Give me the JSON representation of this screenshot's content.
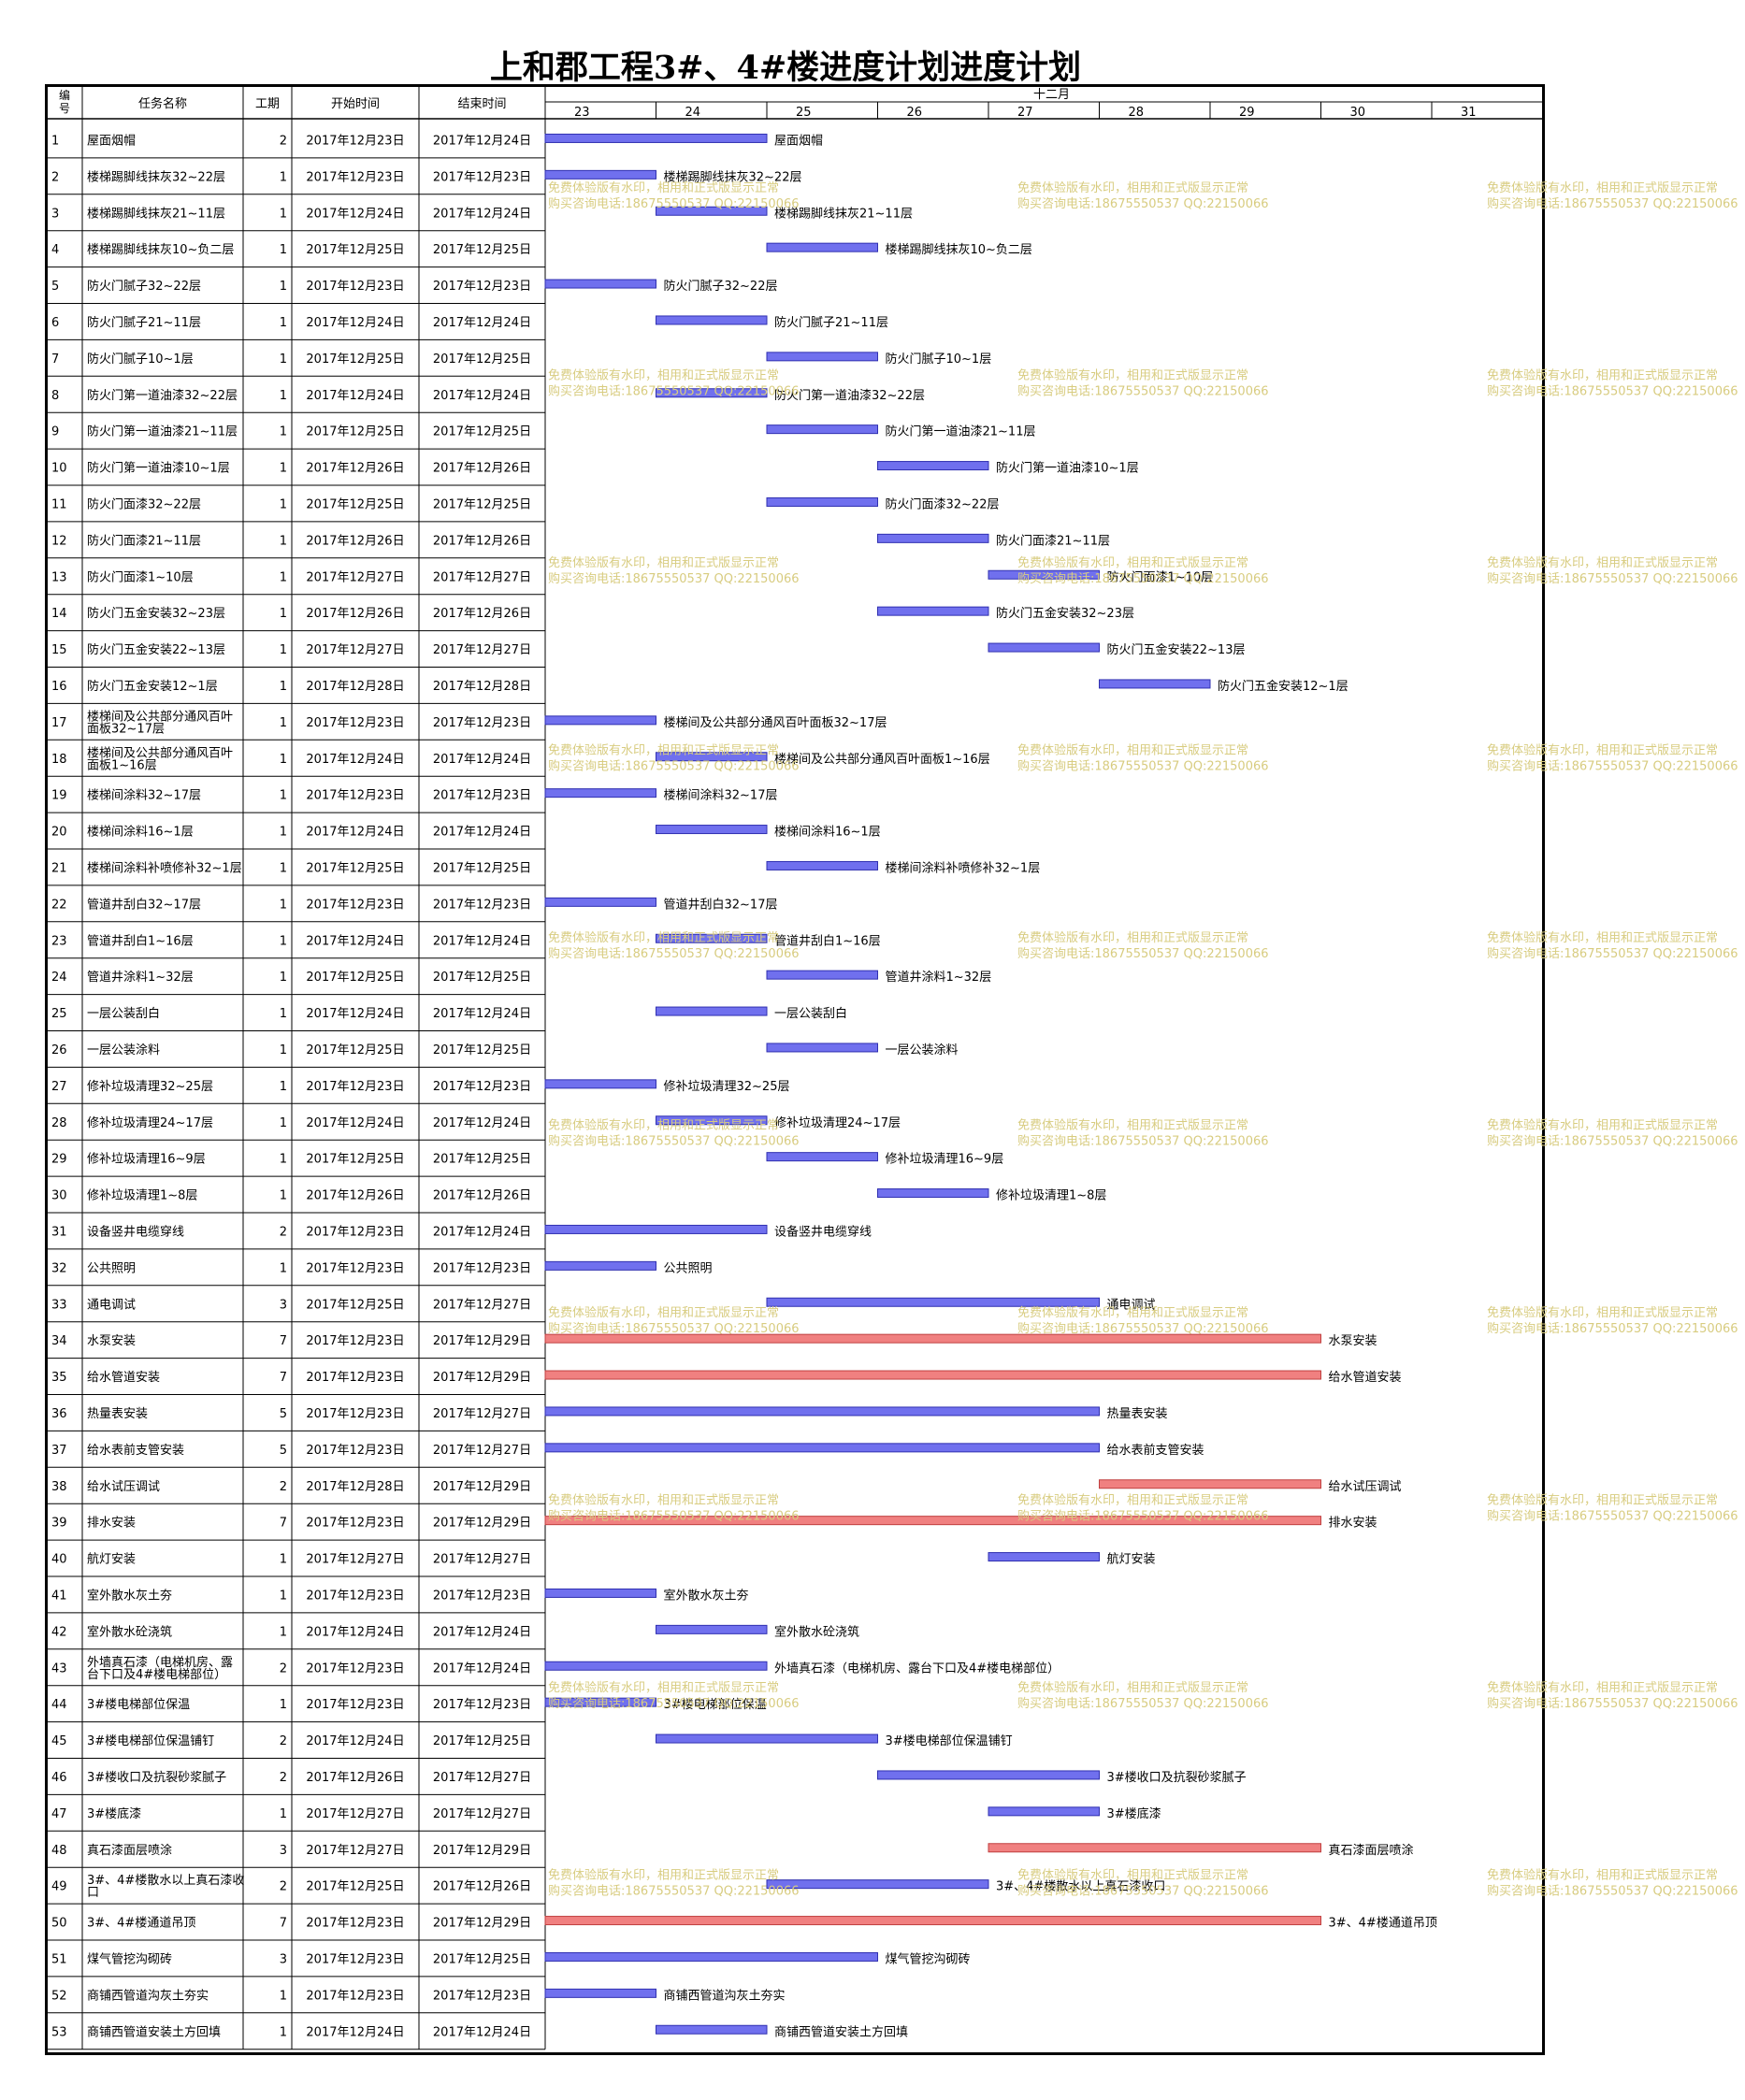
{
  "title": "上和郡工程3#、4#楼进度计划进度计划",
  "columns": {
    "id": "编号",
    "name": "任务名称",
    "dur": "工期",
    "start": "开始时间",
    "end": "结束时间"
  },
  "month_label": "十二月",
  "watermark": {
    "line1": "免费体验版有水印，相用和正式版显示正常",
    "line2": "购买咨询电话:18675550537 QQ:22150066"
  },
  "colors": {
    "normal_bar": "#7070ee",
    "critical_bar": "#f08080",
    "grid": "#888888"
  },
  "chart_data": {
    "type": "gantt",
    "x_axis_days": [
      "23",
      "24",
      "25",
      "26",
      "27",
      "28",
      "29",
      "30",
      "31"
    ],
    "tasks": [
      {
        "id": "1",
        "name": "屋面烟帽",
        "dur": "2",
        "start": "2017年12月23日",
        "end": "2017年12月24日",
        "s": 23,
        "e": 24,
        "critical": false
      },
      {
        "id": "2",
        "name": "楼梯踢脚线抹灰32~22层",
        "dur": "1",
        "start": "2017年12月23日",
        "end": "2017年12月23日",
        "s": 23,
        "e": 23,
        "critical": false
      },
      {
        "id": "3",
        "name": "楼梯踢脚线抹灰21~11层",
        "dur": "1",
        "start": "2017年12月24日",
        "end": "2017年12月24日",
        "s": 24,
        "e": 24,
        "critical": false
      },
      {
        "id": "4",
        "name": "楼梯踢脚线抹灰10~负二层",
        "dur": "1",
        "start": "2017年12月25日",
        "end": "2017年12月25日",
        "s": 25,
        "e": 25,
        "critical": false
      },
      {
        "id": "5",
        "name": "防火门腻子32~22层",
        "dur": "1",
        "start": "2017年12月23日",
        "end": "2017年12月23日",
        "s": 23,
        "e": 23,
        "critical": false
      },
      {
        "id": "6",
        "name": "防火门腻子21~11层",
        "dur": "1",
        "start": "2017年12月24日",
        "end": "2017年12月24日",
        "s": 24,
        "e": 24,
        "critical": false
      },
      {
        "id": "7",
        "name": "防火门腻子10~1层",
        "dur": "1",
        "start": "2017年12月25日",
        "end": "2017年12月25日",
        "s": 25,
        "e": 25,
        "critical": false
      },
      {
        "id": "8",
        "name": "防火门第一道油漆32~22层",
        "dur": "1",
        "start": "2017年12月24日",
        "end": "2017年12月24日",
        "s": 24,
        "e": 24,
        "critical": false
      },
      {
        "id": "9",
        "name": "防火门第一道油漆21~11层",
        "dur": "1",
        "start": "2017年12月25日",
        "end": "2017年12月25日",
        "s": 25,
        "e": 25,
        "critical": false
      },
      {
        "id": "10",
        "name": "防火门第一道油漆10~1层",
        "dur": "1",
        "start": "2017年12月26日",
        "end": "2017年12月26日",
        "s": 26,
        "e": 26,
        "critical": false
      },
      {
        "id": "11",
        "name": "防火门面漆32~22层",
        "dur": "1",
        "start": "2017年12月25日",
        "end": "2017年12月25日",
        "s": 25,
        "e": 25,
        "critical": false
      },
      {
        "id": "12",
        "name": "防火门面漆21~11层",
        "dur": "1",
        "start": "2017年12月26日",
        "end": "2017年12月26日",
        "s": 26,
        "e": 26,
        "critical": false
      },
      {
        "id": "13",
        "name": "防火门面漆1~10层",
        "dur": "1",
        "start": "2017年12月27日",
        "end": "2017年12月27日",
        "s": 27,
        "e": 27,
        "critical": false
      },
      {
        "id": "14",
        "name": "防火门五金安装32~23层",
        "dur": "1",
        "start": "2017年12月26日",
        "end": "2017年12月26日",
        "s": 26,
        "e": 26,
        "critical": false
      },
      {
        "id": "15",
        "name": "防火门五金安装22~13层",
        "dur": "1",
        "start": "2017年12月27日",
        "end": "2017年12月27日",
        "s": 27,
        "e": 27,
        "critical": false
      },
      {
        "id": "16",
        "name": "防火门五金安装12~1层",
        "dur": "1",
        "start": "2017年12月28日",
        "end": "2017年12月28日",
        "s": 28,
        "e": 28,
        "critical": false
      },
      {
        "id": "17",
        "name": "楼梯间及公共部分通风百叶面板32~17层",
        "dur": "1",
        "start": "2017年12月23日",
        "end": "2017年12月23日",
        "s": 23,
        "e": 23,
        "critical": false
      },
      {
        "id": "18",
        "name": "楼梯间及公共部分通风百叶面板1~16层",
        "dur": "1",
        "start": "2017年12月24日",
        "end": "2017年12月24日",
        "s": 24,
        "e": 24,
        "critical": false
      },
      {
        "id": "19",
        "name": "楼梯间涂料32~17层",
        "dur": "1",
        "start": "2017年12月23日",
        "end": "2017年12月23日",
        "s": 23,
        "e": 23,
        "critical": false
      },
      {
        "id": "20",
        "name": "楼梯间涂料16~1层",
        "dur": "1",
        "start": "2017年12月24日",
        "end": "2017年12月24日",
        "s": 24,
        "e": 24,
        "critical": false
      },
      {
        "id": "21",
        "name": "楼梯间涂料补喷修补32~1层",
        "dur": "1",
        "start": "2017年12月25日",
        "end": "2017年12月25日",
        "s": 25,
        "e": 25,
        "critical": false
      },
      {
        "id": "22",
        "name": "管道井刮白32~17层",
        "dur": "1",
        "start": "2017年12月23日",
        "end": "2017年12月23日",
        "s": 23,
        "e": 23,
        "critical": false
      },
      {
        "id": "23",
        "name": "管道井刮白1~16层",
        "dur": "1",
        "start": "2017年12月24日",
        "end": "2017年12月24日",
        "s": 24,
        "e": 24,
        "critical": false
      },
      {
        "id": "24",
        "name": "管道井涂料1~32层",
        "dur": "1",
        "start": "2017年12月25日",
        "end": "2017年12月25日",
        "s": 25,
        "e": 25,
        "critical": false
      },
      {
        "id": "25",
        "name": "一层公装刮白",
        "dur": "1",
        "start": "2017年12月24日",
        "end": "2017年12月24日",
        "s": 24,
        "e": 24,
        "critical": false
      },
      {
        "id": "26",
        "name": "一层公装涂料",
        "dur": "1",
        "start": "2017年12月25日",
        "end": "2017年12月25日",
        "s": 25,
        "e": 25,
        "critical": false
      },
      {
        "id": "27",
        "name": "修补垃圾清理32~25层",
        "dur": "1",
        "start": "2017年12月23日",
        "end": "2017年12月23日",
        "s": 23,
        "e": 23,
        "critical": false
      },
      {
        "id": "28",
        "name": "修补垃圾清理24~17层",
        "dur": "1",
        "start": "2017年12月24日",
        "end": "2017年12月24日",
        "s": 24,
        "e": 24,
        "critical": false
      },
      {
        "id": "29",
        "name": "修补垃圾清理16~9层",
        "dur": "1",
        "start": "2017年12月25日",
        "end": "2017年12月25日",
        "s": 25,
        "e": 25,
        "critical": false
      },
      {
        "id": "30",
        "name": "修补垃圾清理1~8层",
        "dur": "1",
        "start": "2017年12月26日",
        "end": "2017年12月26日",
        "s": 26,
        "e": 26,
        "critical": false
      },
      {
        "id": "31",
        "name": "设备竖井电缆穿线",
        "dur": "2",
        "start": "2017年12月23日",
        "end": "2017年12月24日",
        "s": 23,
        "e": 24,
        "critical": false
      },
      {
        "id": "32",
        "name": "公共照明",
        "dur": "1",
        "start": "2017年12月23日",
        "end": "2017年12月23日",
        "s": 23,
        "e": 23,
        "critical": false
      },
      {
        "id": "33",
        "name": "通电调试",
        "dur": "3",
        "start": "2017年12月25日",
        "end": "2017年12月27日",
        "s": 25,
        "e": 27,
        "critical": false
      },
      {
        "id": "34",
        "name": "水泵安装",
        "dur": "7",
        "start": "2017年12月23日",
        "end": "2017年12月29日",
        "s": 23,
        "e": 29,
        "critical": true
      },
      {
        "id": "35",
        "name": "给水管道安装",
        "dur": "7",
        "start": "2017年12月23日",
        "end": "2017年12月29日",
        "s": 23,
        "e": 29,
        "critical": true
      },
      {
        "id": "36",
        "name": "热量表安装",
        "dur": "5",
        "start": "2017年12月23日",
        "end": "2017年12月27日",
        "s": 23,
        "e": 27,
        "critical": false
      },
      {
        "id": "37",
        "name": "给水表前支管安装",
        "dur": "5",
        "start": "2017年12月23日",
        "end": "2017年12月27日",
        "s": 23,
        "e": 27,
        "critical": false
      },
      {
        "id": "38",
        "name": "给水试压调试",
        "dur": "2",
        "start": "2017年12月28日",
        "end": "2017年12月29日",
        "s": 28,
        "e": 29,
        "critical": true
      },
      {
        "id": "39",
        "name": "排水安装",
        "dur": "7",
        "start": "2017年12月23日",
        "end": "2017年12月29日",
        "s": 23,
        "e": 29,
        "critical": true
      },
      {
        "id": "40",
        "name": "航灯安装",
        "dur": "1",
        "start": "2017年12月27日",
        "end": "2017年12月27日",
        "s": 27,
        "e": 27,
        "critical": false
      },
      {
        "id": "41",
        "name": "室外散水灰土夯",
        "dur": "1",
        "start": "2017年12月23日",
        "end": "2017年12月23日",
        "s": 23,
        "e": 23,
        "critical": false
      },
      {
        "id": "42",
        "name": "室外散水砼浇筑",
        "dur": "1",
        "start": "2017年12月24日",
        "end": "2017年12月24日",
        "s": 24,
        "e": 24,
        "critical": false
      },
      {
        "id": "43",
        "name": "外墙真石漆（电梯机房、露台下口及4#楼电梯部位）",
        "dur": "2",
        "start": "2017年12月23日",
        "end": "2017年12月24日",
        "s": 23,
        "e": 24,
        "critical": false
      },
      {
        "id": "44",
        "name": "3#楼电梯部位保温",
        "dur": "1",
        "start": "2017年12月23日",
        "end": "2017年12月23日",
        "s": 23,
        "e": 23,
        "critical": false
      },
      {
        "id": "45",
        "name": "3#楼电梯部位保温铺钉",
        "dur": "2",
        "start": "2017年12月24日",
        "end": "2017年12月25日",
        "s": 24,
        "e": 25,
        "critical": false
      },
      {
        "id": "46",
        "name": "3#楼收口及抗裂砂浆腻子",
        "dur": "2",
        "start": "2017年12月26日",
        "end": "2017年12月27日",
        "s": 26,
        "e": 27,
        "critical": false
      },
      {
        "id": "47",
        "name": "3#楼底漆",
        "dur": "1",
        "start": "2017年12月27日",
        "end": "2017年12月27日",
        "s": 27,
        "e": 27,
        "critical": false
      },
      {
        "id": "48",
        "name": "真石漆面层喷涂",
        "dur": "3",
        "start": "2017年12月27日",
        "end": "2017年12月29日",
        "s": 27,
        "e": 29,
        "critical": true
      },
      {
        "id": "49",
        "name": "3#、4#楼散水以上真石漆收口",
        "dur": "2",
        "start": "2017年12月25日",
        "end": "2017年12月26日",
        "s": 25,
        "e": 26,
        "critical": false
      },
      {
        "id": "50",
        "name": "3#、4#楼通道吊顶",
        "dur": "7",
        "start": "2017年12月23日",
        "end": "2017年12月29日",
        "s": 23,
        "e": 29,
        "critical": true
      },
      {
        "id": "51",
        "name": "煤气管挖沟砌砖",
        "dur": "3",
        "start": "2017年12月23日",
        "end": "2017年12月25日",
        "s": 23,
        "e": 25,
        "critical": false
      },
      {
        "id": "52",
        "name": "商铺西管道沟灰土夯实",
        "dur": "1",
        "start": "2017年12月23日",
        "end": "2017年12月23日",
        "s": 23,
        "e": 23,
        "critical": false
      },
      {
        "id": "53",
        "name": "商铺西管道安装土方回填",
        "dur": "1",
        "start": "2017年12月24日",
        "end": "2017年12月24日",
        "s": 24,
        "e": 24,
        "critical": false
      }
    ]
  }
}
